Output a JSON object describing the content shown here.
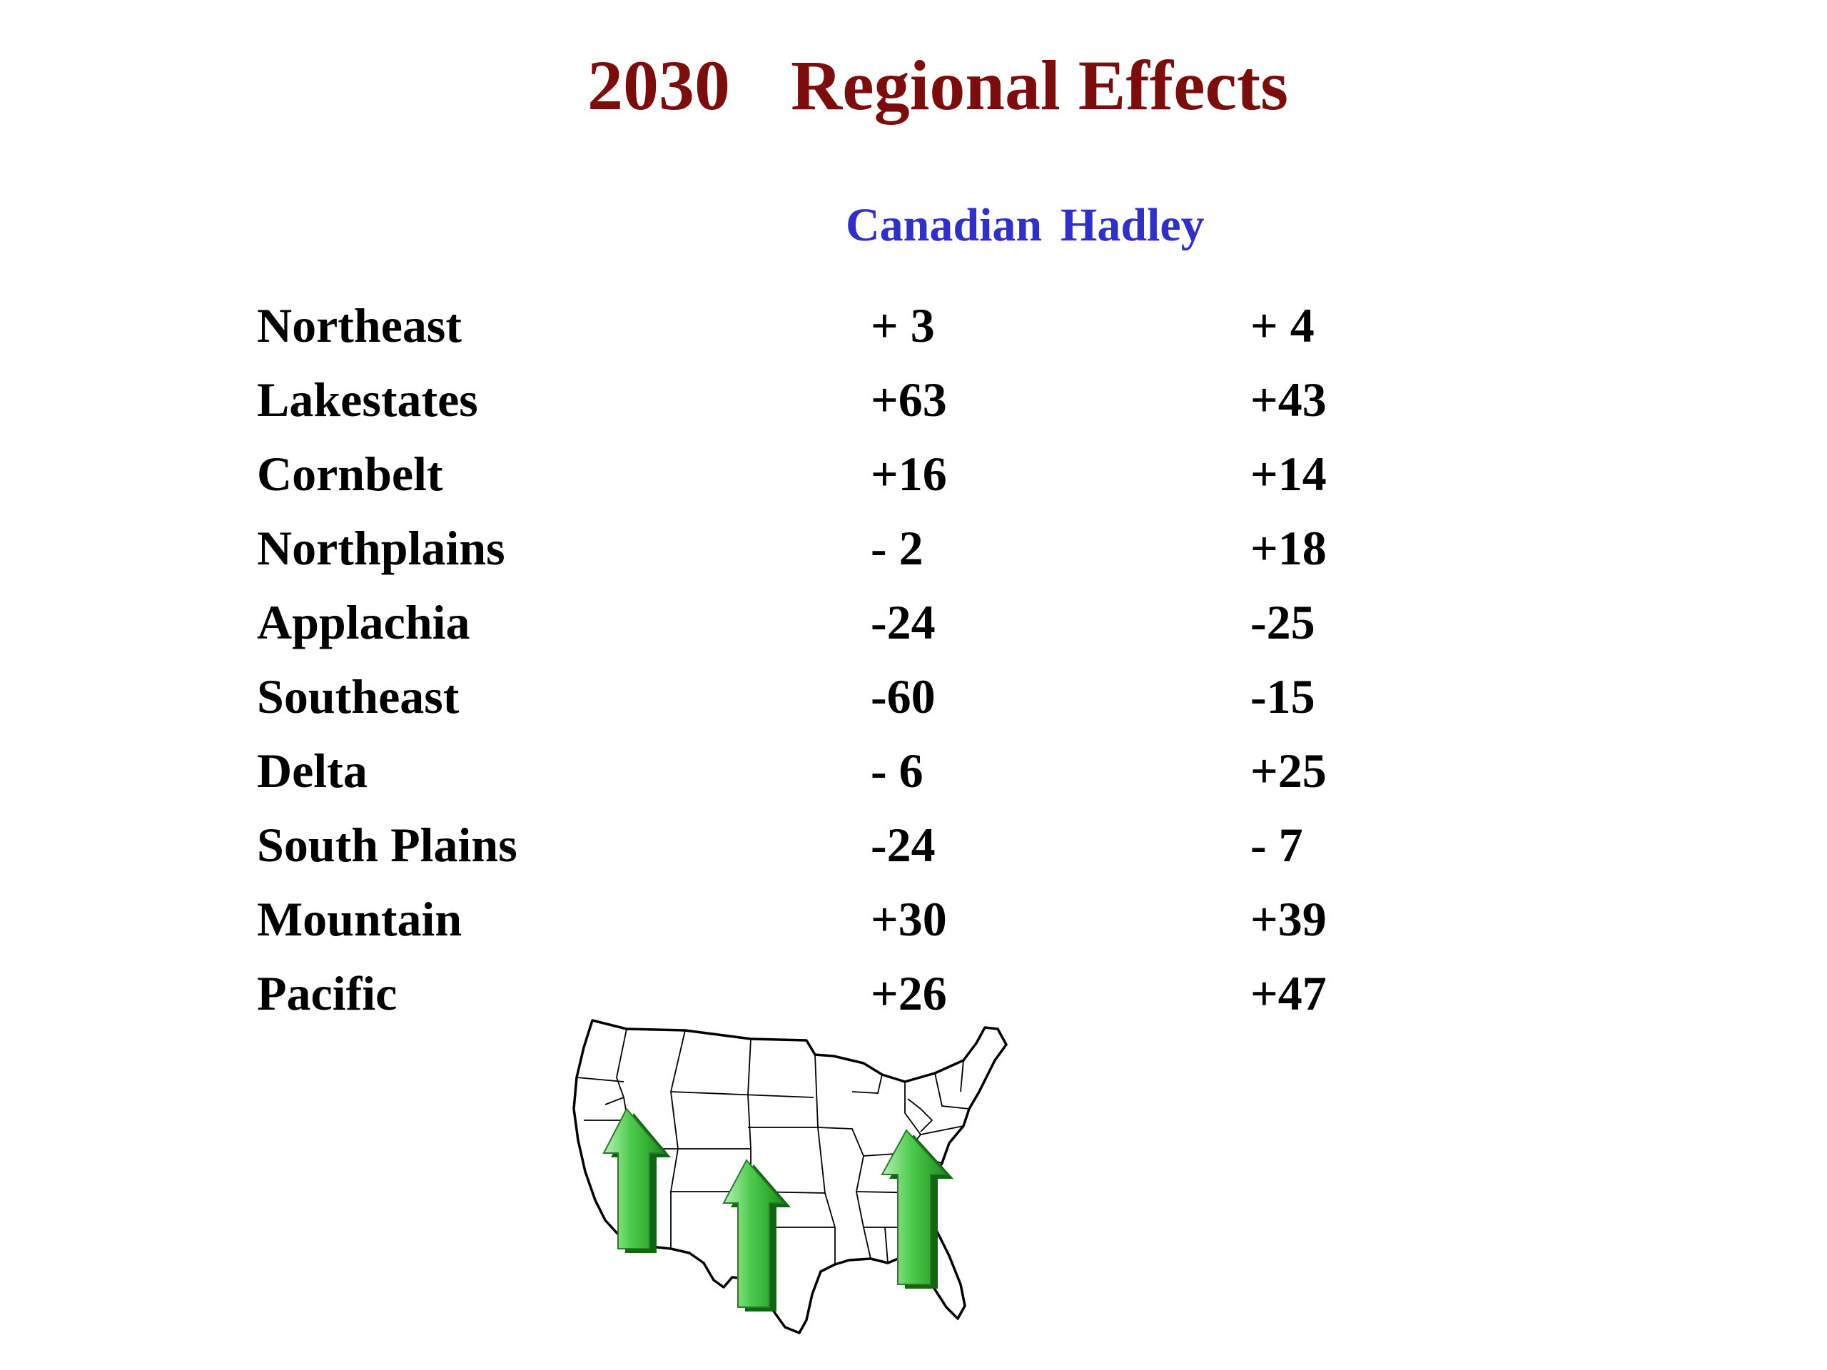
{
  "title": {
    "year": "2030",
    "text": "Regional Effects"
  },
  "columns": {
    "canadian": "Canadian",
    "hadley": "Hadley"
  },
  "rows": [
    {
      "region": "Northeast",
      "canadian": "+ 3",
      "hadley": "+ 4"
    },
    {
      "region": "Lakestates",
      "canadian": "+63",
      "hadley": "+43"
    },
    {
      "region": "Cornbelt",
      "canadian": "+16",
      "hadley": "+14"
    },
    {
      "region": "Northplains",
      "canadian": "- 2",
      "hadley": "+18"
    },
    {
      "region": "Applachia",
      "canadian": "-24",
      "hadley": "-25"
    },
    {
      "region": "Southeast",
      "canadian": "-60",
      "hadley": "-15"
    },
    {
      "region": "Delta",
      "canadian": "- 6",
      "hadley": "+25"
    },
    {
      "region": "South Plains",
      "canadian": "-24",
      "hadley": "- 7"
    },
    {
      "region": "Mountain",
      "canadian": "+30",
      "hadley": "+39"
    },
    {
      "region": "Pacific",
      "canadian": "+26",
      "hadley": "+47"
    }
  ],
  "colors": {
    "title": "#7b0d0d",
    "column_header": "#3030c8",
    "arrow": "#3cc03c"
  },
  "map": {
    "icon": "us-map-icon",
    "arrows": [
      "up-arrow-icon",
      "up-arrow-icon",
      "up-arrow-icon"
    ]
  }
}
